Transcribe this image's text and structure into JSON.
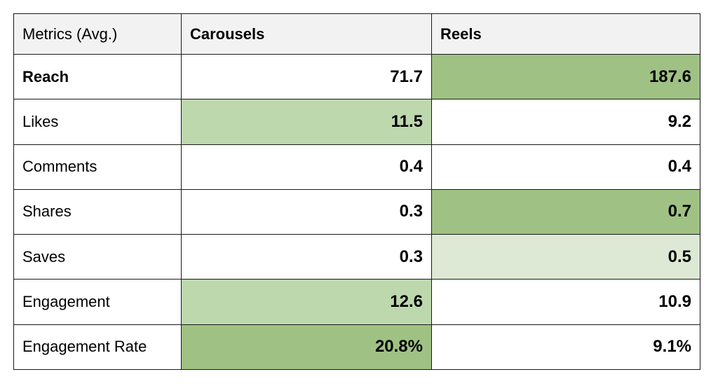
{
  "table": {
    "headers": [
      "Metrics (Avg.)",
      "Carousels",
      "Reels"
    ],
    "rows": [
      {
        "metric": "Reach",
        "carousels": "71.7",
        "reels": "187.6"
      },
      {
        "metric": "Likes",
        "carousels": "11.5",
        "reels": "9.2"
      },
      {
        "metric": "Comments",
        "carousels": "0.4",
        "reels": "0.4"
      },
      {
        "metric": "Shares",
        "carousels": "0.3",
        "reels": "0.7"
      },
      {
        "metric": "Saves",
        "carousels": "0.3",
        "reels": "0.5"
      },
      {
        "metric": "Engagement",
        "carousels": "12.6",
        "reels": "10.9"
      },
      {
        "metric": "Engagement Rate",
        "carousels": "20.8%",
        "reels": "9.1%"
      }
    ]
  },
  "colors": {
    "highlight_strong": "#9fc284",
    "highlight_mid": "#bed8ae",
    "highlight_light": "#dde9d4",
    "header_bg": "#f2f2f2",
    "border": "#1a1a1a"
  }
}
